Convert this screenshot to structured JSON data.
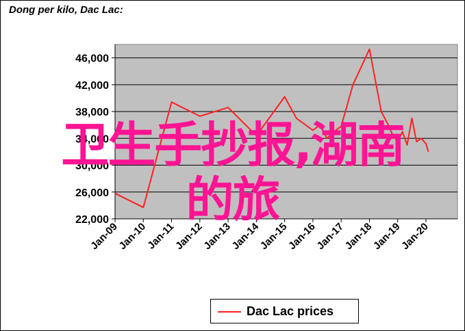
{
  "title": "Dong per kilo, Dac Lac:",
  "overlay_text": {
    "line1": "卫生手抄报,湖南",
    "line2": "的旅"
  },
  "legend": {
    "label": "Dac Lac prices",
    "color": "#ff2020"
  },
  "chart_data": {
    "type": "line",
    "title": "Dong per kilo, Dac Lac:",
    "xlabel": "",
    "ylabel": "",
    "ylim": [
      22000,
      48000
    ],
    "y_ticks": [
      "22,000",
      "26,000",
      "30,000",
      "34,000",
      "38,000",
      "42,000",
      "46,000"
    ],
    "x_ticks": [
      "Jan-09",
      "Jan-10",
      "Jan-11",
      "Jan-12",
      "Jan-13",
      "Jan-14",
      "Jan-15",
      "Jan-16",
      "Jan-17",
      "Jan-18",
      "Jan-19",
      "Jan-20"
    ],
    "grid": true,
    "plot_background": "#c0c0c0",
    "series": [
      {
        "name": "Dac Lac prices",
        "color": "#ff2020",
        "x": [
          "2009-01",
          "2010-01",
          "2011-01",
          "2012-01",
          "2013-01",
          "2014-01",
          "2015-01",
          "2015-06",
          "2016-01",
          "2016-04",
          "2016-07",
          "2016-10",
          "2017-01",
          "2017-06",
          "2018-01",
          "2018-06",
          "2018-09",
          "2018-11",
          "2019-01",
          "2019-03",
          "2019-05",
          "2019-07",
          "2019-09",
          "2019-11",
          "2020-01",
          "2020-02"
        ],
        "values": [
          25800,
          23700,
          39400,
          37300,
          38600,
          34400,
          40200,
          37000,
          35200,
          36000,
          34000,
          35000,
          35800,
          42000,
          47300,
          38000,
          36000,
          34400,
          33500,
          35000,
          33000,
          37000,
          33500,
          34000,
          33200,
          32000
        ]
      }
    ]
  }
}
